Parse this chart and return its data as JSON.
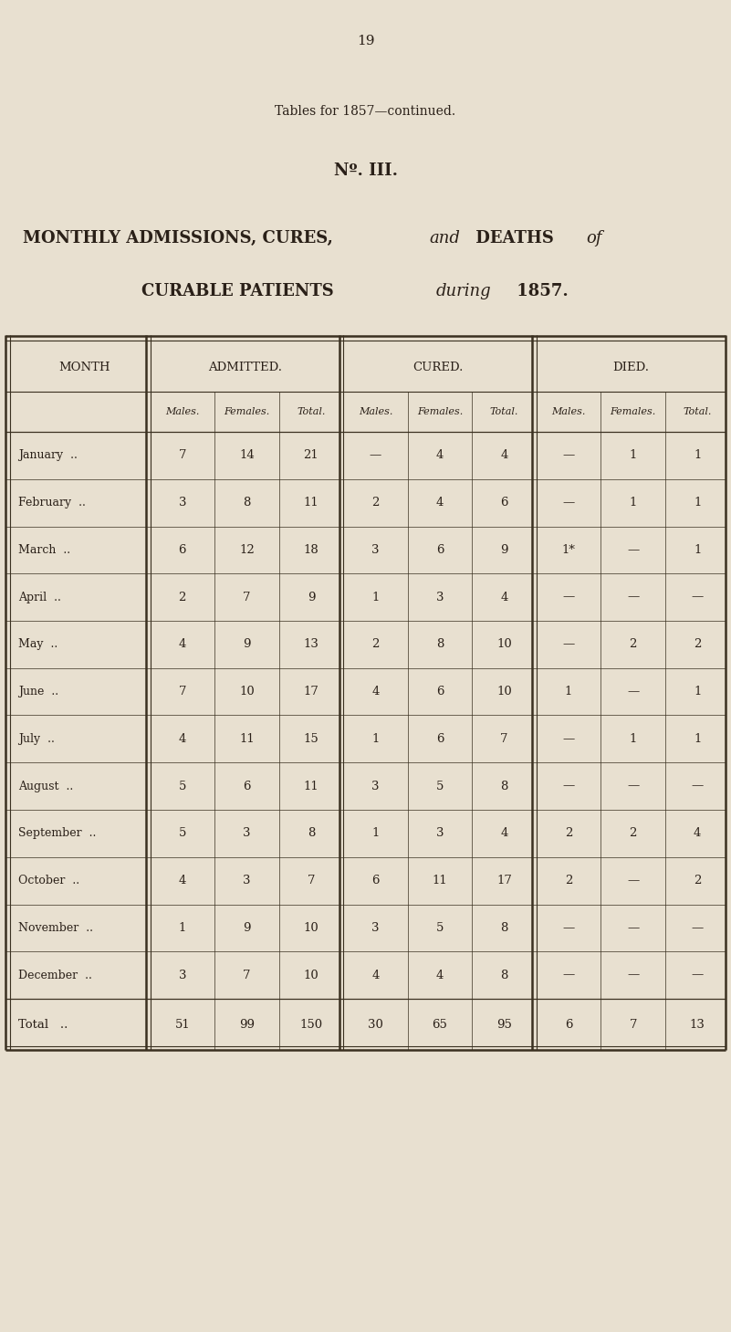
{
  "page_number": "19",
  "subtitle": "Tables for 1857—continued.",
  "table_id": "Nº. III.",
  "title_line1a": "MONTHLY ADMISSIONS, CURES, ",
  "title_line1b": "and",
  "title_line1c": " DEATHS ",
  "title_line1d": "of",
  "title_line2a": "CURABLE PATIENTS ",
  "title_line2b": "during",
  "title_line2c": " 1857.",
  "col_groups": [
    "ADMITTED.",
    "CURED.",
    "DIED."
  ],
  "sub_cols": [
    "Males.",
    "Females.",
    "Total."
  ],
  "row_label_header": "MONTH",
  "months": [
    "January",
    "February",
    "March",
    "April",
    "May",
    "June",
    "July",
    "August",
    "September",
    "October",
    "November",
    "December",
    "Total"
  ],
  "admitted_males": [
    7,
    3,
    6,
    2,
    4,
    7,
    4,
    5,
    5,
    4,
    1,
    3,
    51
  ],
  "admitted_females": [
    14,
    8,
    12,
    7,
    9,
    10,
    11,
    6,
    3,
    3,
    9,
    7,
    99
  ],
  "admitted_total": [
    21,
    11,
    18,
    9,
    13,
    17,
    15,
    11,
    8,
    7,
    10,
    10,
    150
  ],
  "cured_males": [
    "—",
    2,
    3,
    1,
    2,
    4,
    1,
    3,
    1,
    6,
    3,
    4,
    30
  ],
  "cured_females": [
    4,
    4,
    6,
    3,
    8,
    6,
    6,
    5,
    3,
    11,
    5,
    4,
    65
  ],
  "cured_total": [
    4,
    6,
    9,
    4,
    10,
    10,
    7,
    8,
    4,
    17,
    8,
    8,
    95
  ],
  "died_males": [
    "—",
    "—",
    "1*",
    "—",
    "—",
    1,
    "—",
    "—",
    2,
    2,
    "—",
    "—",
    6
  ],
  "died_females": [
    1,
    1,
    "—",
    "—",
    2,
    "—",
    1,
    "—",
    2,
    "—",
    "—",
    "—",
    7
  ],
  "died_total": [
    1,
    1,
    1,
    "—",
    2,
    1,
    1,
    "—",
    4,
    2,
    "—",
    "—",
    13
  ],
  "bg_color": "#e8e0d0",
  "text_color": "#2a2018",
  "line_color": "#3a3020"
}
